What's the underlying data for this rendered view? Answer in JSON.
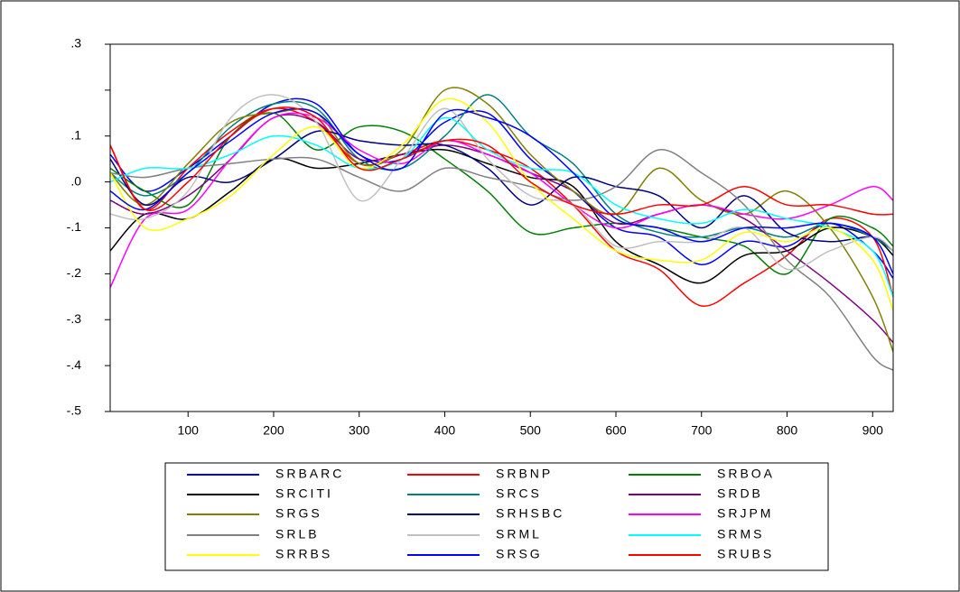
{
  "chart_data": {
    "type": "line",
    "x": [
      9,
      50,
      100,
      150,
      200,
      250,
      300,
      350,
      400,
      450,
      500,
      550,
      600,
      650,
      700,
      750,
      800,
      850,
      900,
      924
    ],
    "xlim": [
      9,
      924
    ],
    "xticks": [
      100,
      200,
      300,
      400,
      500,
      600,
      700,
      800,
      900
    ],
    "ylim": [
      -0.5,
      0.3
    ],
    "yticks": [
      {
        "value": 0.3,
        "label": ".3"
      },
      {
        "value": 0.2,
        "label": null
      },
      {
        "value": 0.1,
        "label": ".1"
      },
      {
        "value": 0,
        "label": ".0"
      },
      {
        "value": -0.1,
        "label": "-.1"
      },
      {
        "value": -0.2,
        "label": "-.2"
      },
      {
        "value": -0.3,
        "label": "-.3"
      },
      {
        "value": -0.4,
        "label": "-.4"
      },
      {
        "value": -0.5,
        "label": "-.5"
      }
    ],
    "series": [
      {
        "name": "SRBARC",
        "color": "#0000ff",
        "values": [
          0.06,
          -0.02,
          0.03,
          0.1,
          0.17,
          0.17,
          0.06,
          0.05,
          0.13,
          0.15,
          0.05,
          -0.02,
          -0.1,
          -0.12,
          -0.18,
          -0.13,
          -0.14,
          -0.09,
          -0.15,
          -0.21
        ]
      },
      {
        "name": "SRBNP",
        "color": "#ff0000",
        "values": [
          0.08,
          -0.06,
          0.03,
          0.11,
          0.16,
          0.13,
          0.04,
          0.06,
          0.09,
          0.07,
          0.03,
          -0.05,
          -0.15,
          -0.19,
          -0.27,
          -0.22,
          -0.16,
          -0.08,
          -0.12,
          -0.25
        ]
      },
      {
        "name": "SRBOA",
        "color": "#008000",
        "values": [
          0.03,
          -0.02,
          -0.05,
          0.1,
          0.15,
          0.07,
          0.12,
          0.11,
          0.05,
          -0.02,
          -0.11,
          -0.1,
          -0.09,
          -0.1,
          -0.12,
          -0.14,
          -0.2,
          -0.08,
          -0.1,
          -0.14
        ]
      },
      {
        "name": "SRCITI",
        "color": "#000000",
        "values": [
          -0.15,
          -0.07,
          -0.08,
          -0.02,
          0.05,
          0.03,
          0.04,
          0.06,
          0.07,
          0.04,
          0.01,
          -0.01,
          -0.13,
          -0.18,
          -0.22,
          -0.16,
          -0.15,
          -0.1,
          -0.12,
          -0.16
        ]
      },
      {
        "name": "SRCS",
        "color": "#008080",
        "values": [
          0.02,
          -0.03,
          0.02,
          0.12,
          0.17,
          0.16,
          0.05,
          0.03,
          0.1,
          0.19,
          0.1,
          0.04,
          -0.07,
          -0.11,
          -0.12,
          -0.1,
          -0.12,
          -0.09,
          -0.12,
          -0.15
        ]
      },
      {
        "name": "SRDB",
        "color": "#800080",
        "values": [
          -0.04,
          -0.07,
          -0.03,
          0.05,
          0.14,
          0.13,
          0.05,
          0.06,
          0.08,
          0.06,
          0.02,
          -0.02,
          -0.09,
          -0.07,
          -0.05,
          -0.08,
          -0.15,
          -0.22,
          -0.3,
          -0.35
        ]
      },
      {
        "name": "SRGS",
        "color": "#808000",
        "values": [
          0.02,
          -0.05,
          0.04,
          0.13,
          0.15,
          0.15,
          0.04,
          0.07,
          0.2,
          0.17,
          0.06,
          -0.02,
          -0.07,
          0.03,
          -0.04,
          -0.07,
          -0.02,
          -0.1,
          -0.25,
          -0.37
        ]
      },
      {
        "name": "SRHSBC",
        "color": "#000080",
        "values": [
          0.05,
          -0.05,
          0.01,
          0.0,
          0.05,
          0.11,
          0.09,
          0.08,
          0.08,
          0.03,
          -0.05,
          0.01,
          -0.01,
          -0.03,
          -0.1,
          -0.03,
          -0.11,
          -0.13,
          -0.12,
          -0.15
        ]
      },
      {
        "name": "SRJPM",
        "color": "#ff00ff",
        "values": [
          -0.23,
          -0.08,
          -0.06,
          0.05,
          0.14,
          0.14,
          0.07,
          0.04,
          0.09,
          0.06,
          0.02,
          -0.05,
          -0.1,
          -0.07,
          -0.05,
          -0.07,
          -0.08,
          -0.05,
          -0.01,
          -0.04
        ]
      },
      {
        "name": "SRLB",
        "color": "#808080",
        "values": [
          0.02,
          0.01,
          0.03,
          0.04,
          0.05,
          0.05,
          0.01,
          -0.02,
          0.03,
          0.01,
          -0.01,
          -0.04,
          -0.01,
          0.07,
          0.02,
          -0.05,
          -0.17,
          -0.25,
          -0.38,
          -0.41
        ]
      },
      {
        "name": "SRML",
        "color": "#c0c0c0",
        "values": [
          -0.07,
          -0.08,
          -0.02,
          0.14,
          0.19,
          0.13,
          -0.04,
          0.05,
          0.16,
          0.05,
          -0.03,
          -0.05,
          -0.14,
          -0.13,
          -0.13,
          -0.1,
          -0.19,
          -0.15,
          -0.12,
          -0.15
        ]
      },
      {
        "name": "SRMS",
        "color": "#00ffff",
        "values": [
          0.0,
          0.03,
          0.03,
          0.06,
          0.1,
          0.08,
          0.03,
          0.05,
          0.14,
          0.07,
          0.03,
          0.02,
          -0.05,
          -0.08,
          -0.09,
          -0.06,
          -0.08,
          -0.1,
          -0.15,
          -0.25
        ]
      },
      {
        "name": "SRRBS",
        "color": "#ffff00",
        "values": [
          0.02,
          -0.1,
          -0.08,
          -0.03,
          0.06,
          0.12,
          0.03,
          0.08,
          0.18,
          0.13,
          0.0,
          -0.08,
          -0.15,
          -0.17,
          -0.17,
          -0.11,
          -0.13,
          -0.1,
          -0.17,
          -0.28
        ]
      },
      {
        "name": "SRSG",
        "color": "#0000ff",
        "values": [
          -0.02,
          -0.06,
          0.02,
          0.09,
          0.15,
          0.15,
          0.06,
          0.03,
          0.15,
          0.14,
          0.1,
          0.02,
          -0.08,
          -0.1,
          -0.13,
          -0.1,
          -0.1,
          -0.09,
          -0.12,
          -0.2
        ]
      },
      {
        "name": "SRUBS",
        "color": "#ff0000",
        "values": [
          0.08,
          -0.06,
          0.0,
          0.1,
          0.16,
          0.14,
          0.03,
          0.05,
          0.09,
          0.08,
          0.0,
          -0.05,
          -0.07,
          -0.05,
          -0.05,
          -0.01,
          -0.05,
          -0.05,
          -0.07,
          -0.07
        ]
      }
    ]
  }
}
